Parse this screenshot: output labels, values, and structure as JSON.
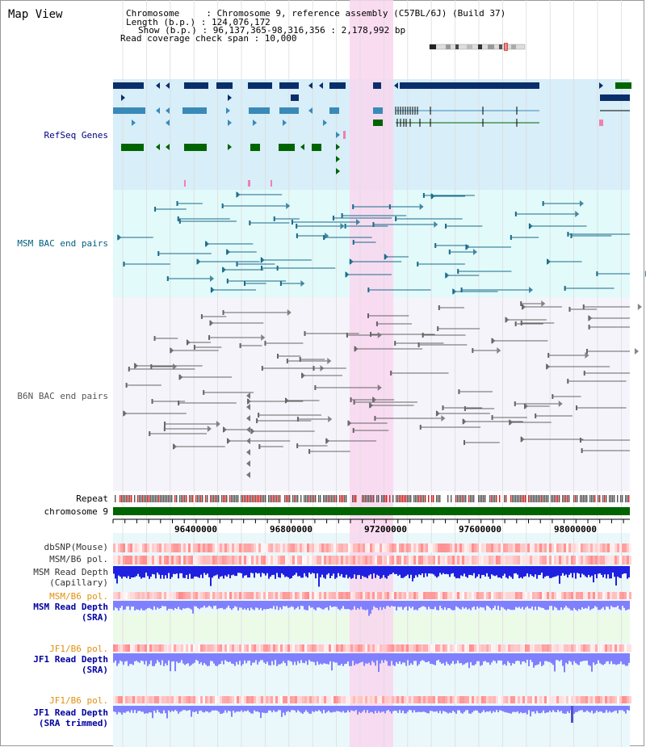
{
  "app": {
    "title": "Map View"
  },
  "header": {
    "chromosome_label": "Chromosome     : Chromosome 9, reference assembly (C57BL/6J) (Build 37)",
    "length_label": "Length (b.p.) : 124,076,172",
    "show_label": "Show (b.p.) : 96,137,365-98,316,356 : 2,178,992 bp",
    "span_label": "Read coverage check span : 10,000"
  },
  "tracks": {
    "refseq": {
      "label": "RefSeq Genes",
      "color": "#000080"
    },
    "msm_bac": {
      "label": "MSM BAC end pairs",
      "color": "#006080"
    },
    "b6n_bac": {
      "label": "B6N BAC end pairs",
      "color": "#555555"
    },
    "repeat": {
      "label": "Repeat"
    },
    "chromosome": {
      "label": "chromosome 9"
    },
    "dbsnp": {
      "label": "dbSNP(Mouse)"
    },
    "msm_b6_pol": {
      "label": "MSM/B6 pol."
    },
    "msm_depth_cap": {
      "label1": "MSM Read Depth",
      "label2": "(Capillary)"
    },
    "msm_b6_pol2": {
      "label": "MSM/B6 pol."
    },
    "msm_depth_sra": {
      "label1": "MSM Read Depth",
      "label2": "(SRA)"
    },
    "jf1_b6_pol": {
      "label": "JF1/B6 pol."
    },
    "jf1_depth_sra": {
      "label1": "JF1 Read Depth",
      "label2": "(SRA)"
    },
    "jf1_b6_pol2": {
      "label": "JF1/B6 pol."
    },
    "jf1_depth_trim": {
      "label1": "JF1 Read Depth",
      "label2": "(SRA trimmed)"
    }
  },
  "axis": {
    "ticks": [
      "96400000",
      "96800000",
      "97200000",
      "97600000",
      "98000000"
    ]
  },
  "colors": {
    "refseq_bg": "#d8eef8",
    "msm_bg": "#e2fafa",
    "b6n_bg": "#f4f4fa",
    "highlight": "#f9d6ef",
    "chromosome": "#006400",
    "repeat": "#555555",
    "repeat_accent": "#cc2222",
    "snp": "#ff8080",
    "pol": "#ff4040",
    "depth_cap": "#2020e0",
    "depth_sra": "#8080ff",
    "jf1_label": "#e09010",
    "depth_label": "#0000a0"
  }
}
